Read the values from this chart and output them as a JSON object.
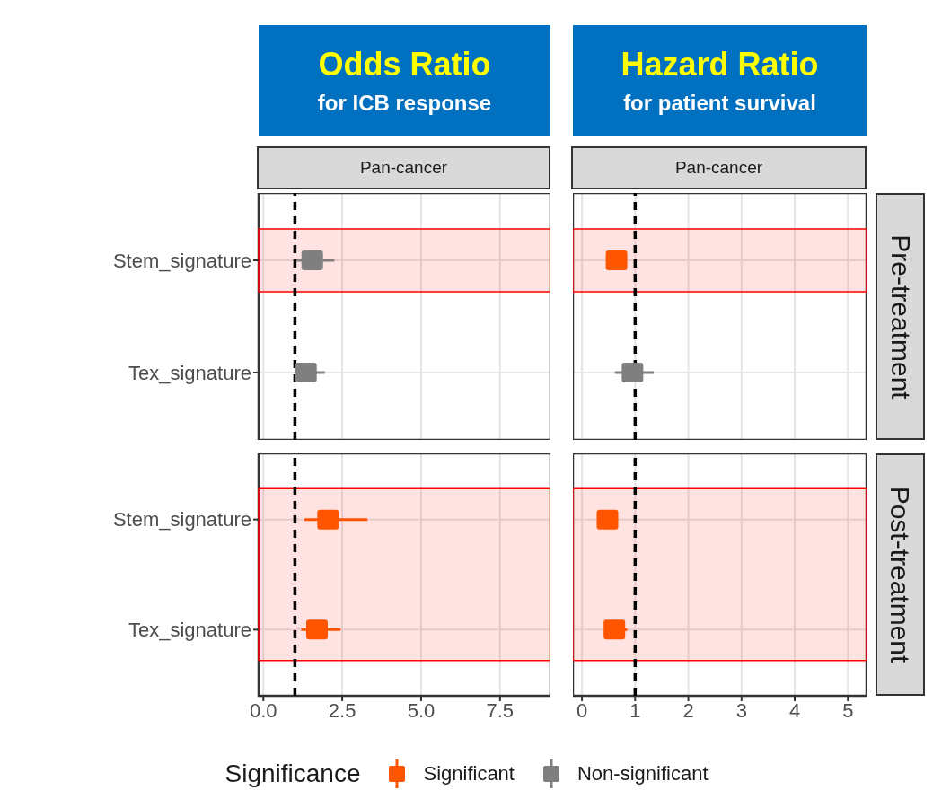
{
  "chart_data": [
    {
      "type": "scatter",
      "orientation": "horizontal",
      "title": "Odds Ratio",
      "subtitle": "for ICB response",
      "annotations": [
        "Pan-cancer"
      ],
      "categories": [
        "Stem_signature",
        "Tex_signature"
      ],
      "series": [
        {
          "color": "#ff5500",
          "values": [
            null,
            null
          ],
          "errors": [
            null,
            null
          ]
        },
        {
          "color": "#7f7f7f",
          "values": [
            1.55,
            1.35
          ],
          "errors": [
            [
              1.05,
              2.25
            ],
            [
              1.0,
              1.95
            ]
          ]
        }
      ],
      "xlim": [
        -0.15,
        9.1
      ],
      "xticks": [
        0,
        2.5,
        5,
        7.5
      ],
      "ref_lines": [
        {
          "axis": "x",
          "value": 1,
          "color": "#000000",
          "line_style": "dashed"
        }
      ],
      "bands": [
        {
          "axis": "y",
          "from": "Stem_signature",
          "to": "Stem_signature",
          "color": "#ff0000"
        }
      ],
      "grid": true,
      "marker": "square",
      "tick_labels": "y"
    },
    {
      "type": "scatter",
      "orientation": "horizontal",
      "title": "Hazard Ratio",
      "subtitle": "for patient survival",
      "annotations": [
        "Pan-cancer"
      ],
      "y2label": "Pre-treatment",
      "categories": [
        "Stem_signature",
        "Tex_signature"
      ],
      "series": [
        {
          "color": "#ff5500",
          "values": [
            0.65,
            null
          ],
          "errors": [
            null,
            null
          ]
        },
        {
          "color": "#7f7f7f",
          "values": [
            null,
            0.95
          ],
          "errors": [
            null,
            [
              0.62,
              1.35
            ]
          ]
        }
      ],
      "xlim": [
        -0.17,
        5.35
      ],
      "xticks": [
        0,
        1,
        2,
        3,
        4,
        5
      ],
      "ref_lines": [
        {
          "axis": "x",
          "value": 1,
          "color": "#000000",
          "line_style": "dashed"
        }
      ],
      "bands": [
        {
          "axis": "y",
          "from": "Stem_signature",
          "to": "Stem_signature",
          "color": "#ff0000"
        }
      ],
      "grid": true,
      "marker": "square",
      "tick_labels": false
    },
    {
      "type": "scatter",
      "orientation": "horizontal",
      "categories": [
        "Stem_signature",
        "Tex_signature"
      ],
      "series": [
        {
          "color": "#ff5500",
          "values": [
            2.05,
            1.7
          ],
          "errors": [
            [
              1.3,
              3.3
            ],
            [
              1.2,
              2.45
            ]
          ]
        },
        {
          "color": "#7f7f7f",
          "values": [
            null,
            null
          ],
          "errors": [
            null,
            null
          ]
        }
      ],
      "xlim": [
        -0.15,
        9.1
      ],
      "xticks": [
        {
          "value": 0,
          "label": "0.0"
        },
        {
          "value": 2.5,
          "label": "2.5"
        },
        {
          "value": 5,
          "label": "5.0"
        },
        {
          "value": 7.5,
          "label": "7.5"
        }
      ],
      "ref_lines": [
        {
          "axis": "x",
          "value": 1,
          "color": "#000000",
          "line_style": "dashed"
        }
      ],
      "bands": [
        {
          "axis": "y",
          "from": "Stem_signature",
          "to": "Tex_signature",
          "color": "#ff0000"
        }
      ],
      "grid": true,
      "marker": "square"
    },
    {
      "type": "scatter",
      "orientation": "horizontal",
      "y2label": "Post-treatment",
      "legend": "bottom",
      "legend_title": "Significance",
      "categories": [
        "Stem_signature",
        "Tex_signature"
      ],
      "series": [
        {
          "name": "Significant",
          "color": "#ff5500",
          "values": [
            0.48,
            0.61
          ],
          "errors": [
            null,
            [
              0.61,
              0.85
            ]
          ]
        },
        {
          "name": "Non-significant",
          "color": "#7f7f7f",
          "values": [
            null,
            null
          ],
          "errors": [
            null,
            null
          ]
        }
      ],
      "xlim": [
        -0.17,
        5.35
      ],
      "xticks": [
        0,
        1,
        2,
        3,
        4,
        5
      ],
      "ref_lines": [
        {
          "axis": "x",
          "value": 1,
          "color": "#000000",
          "line_style": "dashed"
        }
      ],
      "bands": [
        {
          "axis": "y",
          "from": "Stem_signature",
          "to": "Tex_signature",
          "color": "#ff0000"
        }
      ],
      "grid": true,
      "marker": "square",
      "tick_labels": "x"
    }
  ]
}
